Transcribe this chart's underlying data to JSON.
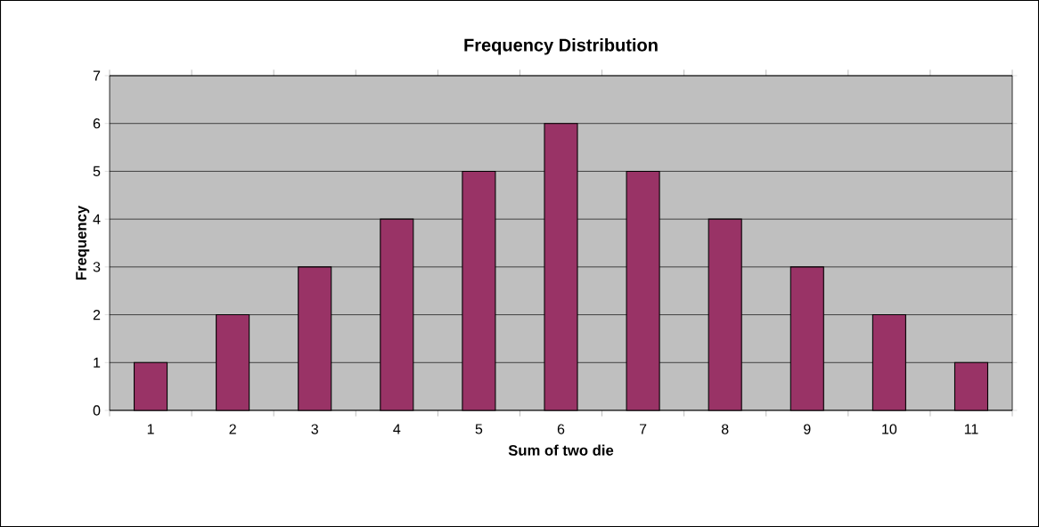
{
  "chart_data": {
    "type": "bar",
    "title": "Frequency Distribution",
    "xlabel": "Sum of two die",
    "ylabel": "Frequency",
    "categories": [
      "1",
      "2",
      "3",
      "4",
      "5",
      "6",
      "7",
      "8",
      "9",
      "10",
      "11"
    ],
    "values": [
      1,
      2,
      3,
      4,
      5,
      6,
      5,
      4,
      3,
      2,
      1
    ],
    "color": "#993366",
    "ylim": [
      0,
      7
    ],
    "yticks": [
      0,
      1,
      2,
      3,
      4,
      5,
      6,
      7
    ],
    "grid": "y"
  }
}
